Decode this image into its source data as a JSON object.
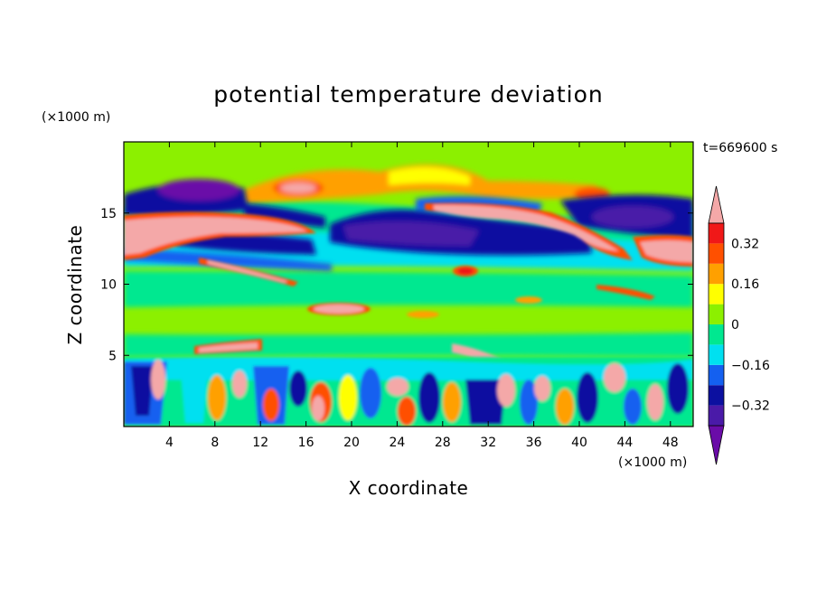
{
  "chart_data": {
    "type": "heatmap",
    "title": "potential temperature deviation",
    "xlabel": "X coordinate",
    "ylabel": "Z coordinate",
    "x_unit": "(×1000 m)",
    "y_unit": "(×1000 m)",
    "time_label": "t=669600 s",
    "xlim": [
      0,
      50
    ],
    "ylim": [
      0,
      20
    ],
    "x_ticks": [
      4,
      8,
      12,
      16,
      20,
      24,
      28,
      32,
      36,
      40,
      44,
      48
    ],
    "y_ticks": [
      5,
      10,
      15
    ],
    "colorbar": {
      "levels": [
        -0.4,
        -0.32,
        -0.24,
        -0.16,
        -0.08,
        0,
        0.08,
        0.16,
        0.24,
        0.32,
        0.4
      ],
      "tick_labels": [
        "0.32",
        "0.16",
        "0",
        "−0.16",
        "−0.32"
      ],
      "tick_values": [
        0.32,
        0.16,
        0,
        -0.16,
        -0.32
      ],
      "colors": [
        "#6a0ca8",
        "#4a1aa8",
        "#0c10a0",
        "#1460f0",
        "#00e0f0",
        "#00e890",
        "#8cf000",
        "#ffff00",
        "#ffa000",
        "#ff5000",
        "#f01818",
        "#f4a8a8"
      ]
    },
    "field_features": [
      {
        "x": [
          0,
          50
        ],
        "z": [
          16,
          19.5
        ],
        "value": 0.04
      },
      {
        "x": [
          0,
          10
        ],
        "z": [
          12,
          14.5
        ],
        "value": 0.4
      },
      {
        "x": [
          18,
          40
        ],
        "z": [
          12.5,
          15
        ],
        "value": -0.36
      },
      {
        "x": [
          2,
          10
        ],
        "z": [
          16,
          17.5
        ],
        "value": -0.4
      },
      {
        "x": [
          26,
          36
        ],
        "z": [
          14.5,
          16
        ],
        "value": 0.4
      },
      {
        "x": [
          40,
          50
        ],
        "z": [
          12,
          15
        ],
        "value": 0.4
      },
      {
        "x": [
          0,
          50
        ],
        "z": [
          0,
          4
        ],
        "value": -0.1
      }
    ]
  }
}
